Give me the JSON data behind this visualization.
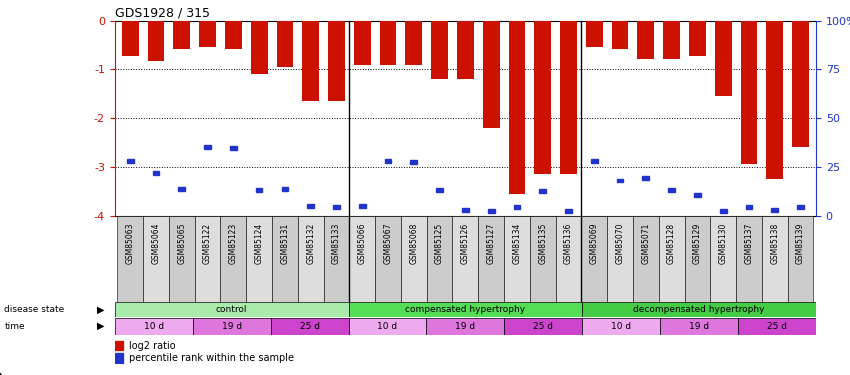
{
  "title": "GDS1928 / 315",
  "samples": [
    "GSM85063",
    "GSM85064",
    "GSM85065",
    "GSM85122",
    "GSM85123",
    "GSM85124",
    "GSM85131",
    "GSM85132",
    "GSM85133",
    "GSM85066",
    "GSM85067",
    "GSM85068",
    "GSM85125",
    "GSM85126",
    "GSM85127",
    "GSM85134",
    "GSM85135",
    "GSM85136",
    "GSM85069",
    "GSM85070",
    "GSM85071",
    "GSM85128",
    "GSM85129",
    "GSM85130",
    "GSM85137",
    "GSM85138",
    "GSM85139"
  ],
  "log2_ratio": [
    -0.72,
    -0.82,
    -0.58,
    -0.55,
    -0.58,
    -1.1,
    -0.95,
    -1.65,
    -1.65,
    -0.9,
    -0.9,
    -0.92,
    -1.2,
    -1.2,
    -2.2,
    -3.55,
    -3.15,
    -3.15,
    -0.55,
    -0.58,
    -0.78,
    -0.78,
    -0.72,
    -1.55,
    -2.95,
    -3.25,
    -2.6
  ],
  "percentile": [
    -2.88,
    -3.12,
    -3.45,
    -2.6,
    -2.62,
    -3.48,
    -3.45,
    -3.8,
    -3.82,
    -3.8,
    -2.88,
    -2.9,
    -3.48,
    -3.88,
    -3.9,
    -3.82,
    -3.5,
    -3.9,
    -2.88,
    -3.28,
    -3.22,
    -3.48,
    -3.58,
    -3.9,
    -3.82,
    -3.88,
    -3.82
  ],
  "disease_state_groups": [
    {
      "label": "control",
      "start": 0,
      "end": 9,
      "color": "#aaeaaa"
    },
    {
      "label": "compensated hypertrophy",
      "start": 9,
      "end": 18,
      "color": "#55dd55"
    },
    {
      "label": "decompensated hypertrophy",
      "start": 18,
      "end": 27,
      "color": "#44cc44"
    }
  ],
  "time_groups": [
    {
      "label": "10 d",
      "start": 0,
      "end": 3,
      "color": "#eeaaee"
    },
    {
      "label": "19 d",
      "start": 3,
      "end": 6,
      "color": "#dd77dd"
    },
    {
      "label": "25 d",
      "start": 6,
      "end": 9,
      "color": "#cc44cc"
    },
    {
      "label": "10 d",
      "start": 9,
      "end": 12,
      "color": "#eeaaee"
    },
    {
      "label": "19 d",
      "start": 12,
      "end": 15,
      "color": "#dd77dd"
    },
    {
      "label": "25 d",
      "start": 15,
      "end": 18,
      "color": "#cc44cc"
    },
    {
      "label": "10 d",
      "start": 18,
      "end": 21,
      "color": "#eeaaee"
    },
    {
      "label": "19 d",
      "start": 21,
      "end": 24,
      "color": "#dd77dd"
    },
    {
      "label": "25 d",
      "start": 24,
      "end": 27,
      "color": "#cc44cc"
    }
  ],
  "bar_color": "#cc1100",
  "percentile_color": "#2233cc",
  "ylim_min": -4,
  "ylim_max": 0,
  "y_ticks": [
    0,
    -1,
    -2,
    -3,
    -4
  ],
  "y_tick_labels": [
    "0",
    "-1",
    "-2",
    "-3",
    "-4"
  ],
  "right_y_ticks": [
    0,
    -1,
    -2,
    -3,
    -4
  ],
  "right_y_tick_labels": [
    "100%",
    "75",
    "50",
    "25",
    "0"
  ],
  "tick_label_color": "#cc1100",
  "right_tick_color": "#2233cc",
  "bar_width": 0.65,
  "cell_color_even": "#cccccc",
  "cell_color_odd": "#dddddd",
  "ds_left_label": "disease state",
  "time_left_label": "time",
  "legend_red_label": "log2 ratio",
  "legend_blue_label": "percentile rank within the sample"
}
